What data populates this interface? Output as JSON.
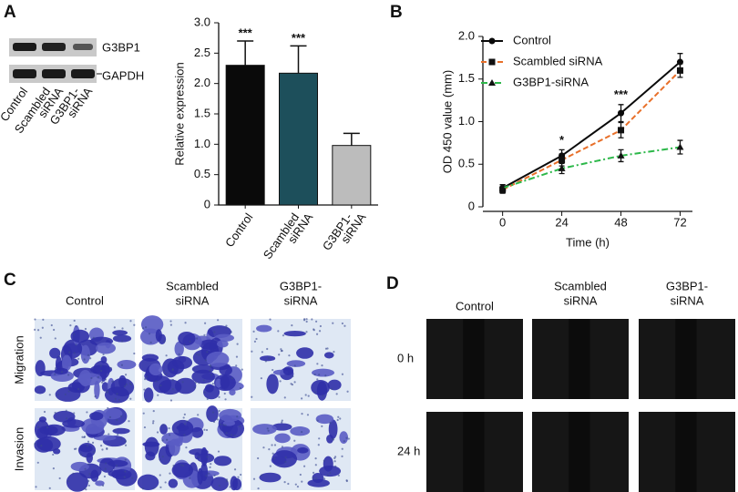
{
  "panels": {
    "a": "A",
    "b": "B",
    "c": "C",
    "d": "D"
  },
  "blot": {
    "bands": [
      "G3BP1",
      "GAPDH"
    ],
    "lanes": [
      [
        "Control"
      ],
      [
        "Scambled",
        "siRNA"
      ],
      [
        "G3BP1-",
        "siRNA"
      ]
    ]
  },
  "chart_data": [
    {
      "type": "bar",
      "y_label": "Relative expression",
      "categories": [
        [
          "Control"
        ],
        [
          "Scambled",
          "siRNA"
        ],
        [
          "G3BP1-",
          "siRNA"
        ]
      ],
      "values": [
        2.3,
        2.17,
        0.98
      ],
      "errors": [
        0.4,
        0.45,
        0.2
      ],
      "colors": [
        "#0a0a0a",
        "#1d4f5b",
        "#bcbcbc"
      ],
      "significance": [
        "***",
        "***",
        null
      ],
      "ylim": [
        0,
        3.0
      ],
      "yticks": [
        0,
        0.5,
        {
          "value": 1.0,
          "label": "1.0"
        },
        1.5,
        {
          "value": 2.0,
          "label": "2.0"
        },
        2.5,
        {
          "value": 3.0,
          "label": "3.0"
        }
      ]
    },
    {
      "type": "line",
      "x_label": "Time (h)",
      "y_label": "OD 450 value (mm)",
      "x": [
        0,
        24,
        48,
        72
      ],
      "series": [
        {
          "name": "Control",
          "color": "#0a0a0a",
          "marker": "circle",
          "dash": "solid",
          "values": [
            0.22,
            0.6,
            1.1,
            1.7
          ],
          "errors": [
            0.04,
            0.07,
            0.1,
            0.1
          ]
        },
        {
          "name": "Scambled siRNA",
          "color": "#e8702a",
          "marker": "square",
          "dash": "dashed",
          "values": [
            0.2,
            0.55,
            0.9,
            1.6
          ],
          "errors": [
            0.04,
            0.07,
            0.09,
            0.08
          ]
        },
        {
          "name": "G3BP1-siRNA",
          "color": "#2db84a",
          "marker": "triangle",
          "dash": "dashdot",
          "values": [
            0.22,
            0.45,
            0.6,
            0.7
          ],
          "errors": [
            0.04,
            0.06,
            0.07,
            0.08
          ]
        }
      ],
      "significance": [
        null,
        "*",
        "***",
        null
      ],
      "xlim": [
        -8,
        77
      ],
      "ylim": [
        0,
        2.0
      ],
      "xticks": [
        0,
        24,
        48,
        72
      ],
      "yticks": [
        0,
        0.5,
        {
          "value": 1.0,
          "label": "1.0"
        },
        1.5,
        {
          "value": 2.0,
          "label": "2.0"
        }
      ],
      "legend": "upper left"
    }
  ],
  "migration": {
    "columns": [
      [
        "Control"
      ],
      [
        "Scambled",
        "siRNA"
      ],
      [
        "G3BP1-",
        "siRNA"
      ]
    ],
    "rows": [
      "Migration",
      "Invasion"
    ]
  },
  "wound": {
    "columns": [
      [
        "Control"
      ],
      [
        "Scambled",
        "siRNA"
      ],
      [
        "G3BP1-",
        "siRNA"
      ]
    ],
    "rows": [
      "0 h",
      "24 h"
    ]
  }
}
